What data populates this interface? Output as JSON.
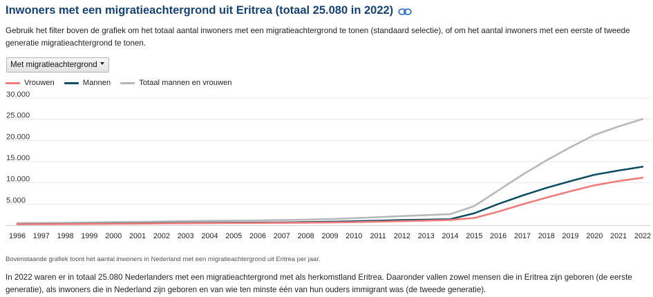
{
  "header": {
    "title": "Inwoners met een migratieachtergrond uit Eritrea (totaal 25.080 in 2022)",
    "link_icon": "link-icon"
  },
  "intro": "Gebruik het filter boven de grafiek om het totaal aantal inwoners met een migratieachtergrond te tonen (standaard selectie), of om het aantal inwoners met een eerste of tweede generatie migratieachtergrond te tonen.",
  "filter": {
    "selected": "Met migratieachtergrond",
    "icon": "caret-down-icon"
  },
  "caption": "Bovenstaande grafiek toont het aantal inwoners in Nederland met een migratieachtergrond uit Eritrea per jaar.",
  "body_text": "In 2022 waren er in totaal 25.080 Nederlanders met een migratieachtergrond met als herkomstland Eritrea. Daaronder vallen zowel mensen die in Eritrea zijn geboren (de eerste generatie), als inwoners die in Nederland zijn geboren en van wie ten minste één van hun ouders immigrant was (de tweede generatie).",
  "colors": {
    "title": "#154273",
    "vrouwen": "#f07c7c",
    "mannen": "#0e4d64",
    "totaal": "#b5b9b9",
    "grid": "#e6e6e6"
  },
  "chart_data": {
    "type": "line",
    "x": [
      "1996",
      "1997",
      "1998",
      "1999",
      "2000",
      "2001",
      "2002",
      "2003",
      "2004",
      "2005",
      "2006",
      "2007",
      "2008",
      "2009",
      "2010",
      "2011",
      "2012",
      "2013",
      "2014",
      "2015",
      "2016",
      "2017",
      "2018",
      "2019",
      "2020",
      "2021",
      "2022"
    ],
    "y_ticks": [
      "5.000",
      "10.000",
      "15.000",
      "20.000",
      "25.000",
      "30.000"
    ],
    "ylim": [
      0,
      30000
    ],
    "grid": true,
    "legend_position": "top-left",
    "series": [
      {
        "name": "Vrouwen",
        "color": "#f07c7c",
        "values": [
          250,
          250,
          260,
          290,
          330,
          360,
          400,
          440,
          470,
          490,
          520,
          550,
          590,
          640,
          720,
          830,
          950,
          1080,
          1200,
          1700,
          3200,
          4900,
          6500,
          8000,
          9400,
          10400,
          11200
        ]
      },
      {
        "name": "Mannen",
        "color": "#0e4d64",
        "values": [
          250,
          270,
          300,
          340,
          380,
          420,
          470,
          520,
          560,
          590,
          620,
          660,
          720,
          800,
          930,
          1060,
          1200,
          1300,
          1400,
          2800,
          5000,
          7000,
          8800,
          10400,
          11900,
          12900,
          13800
        ]
      },
      {
        "name": "Totaal mannen en vrouwen",
        "color": "#b5b9b9",
        "values": [
          500,
          520,
          560,
          630,
          710,
          780,
          870,
          960,
          1030,
          1080,
          1140,
          1210,
          1310,
          1440,
          1650,
          1890,
          2150,
          2380,
          2600,
          4500,
          8200,
          11900,
          15300,
          18400,
          21300,
          23300,
          25080
        ]
      }
    ]
  }
}
